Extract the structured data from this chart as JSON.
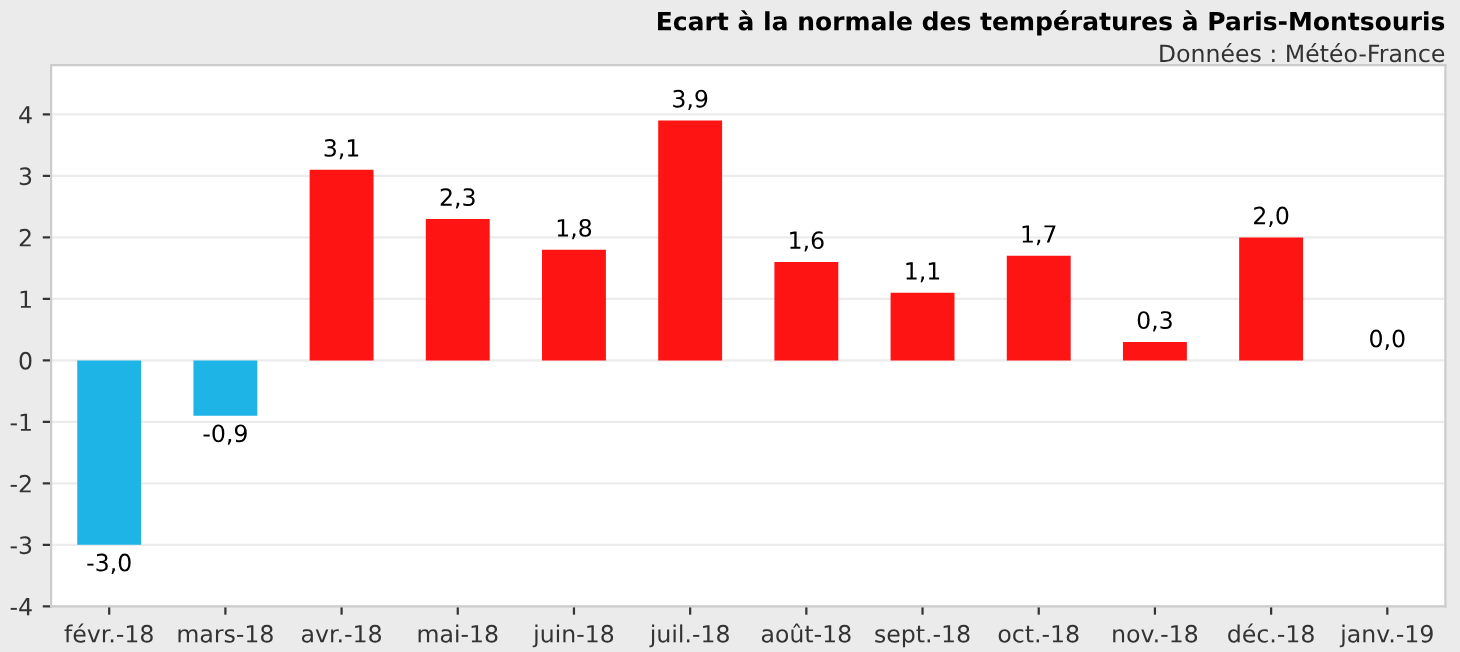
{
  "chart_data": {
    "type": "bar",
    "title": "Ecart à la normale des températures à Paris-Montsouris",
    "subtitle": "Données : Météo-France",
    "categories": [
      "févr.-18",
      "mars-18",
      "avr.-18",
      "mai-18",
      "juin-18",
      "juil.-18",
      "août-18",
      "sept.-18",
      "oct.-18",
      "nov.-18",
      "déc.-18",
      "janv.-19"
    ],
    "values": [
      -3.0,
      -0.9,
      3.1,
      2.3,
      1.8,
      3.9,
      1.6,
      1.1,
      1.7,
      0.3,
      2.0,
      0.0
    ],
    "colors": [
      "#1eb4e6",
      "#1eb4e6",
      "#ff1414",
      "#ff1414",
      "#ff1414",
      "#ff1414",
      "#ff1414",
      "#ff1414",
      "#ff1414",
      "#ff1414",
      "#ff1414",
      "#ff1414"
    ],
    "value_labels": [
      "-3,0",
      "-0,9",
      "3,1",
      "2,3",
      "1,8",
      "3,9",
      "1,6",
      "1,1",
      "1,7",
      "0,3",
      "2,0",
      "0,0"
    ],
    "ylim": [
      -4,
      4.8
    ],
    "yticks": [
      -4,
      -3,
      -2,
      -1,
      0,
      1,
      2,
      3,
      4
    ],
    "grid": "y",
    "legend": false
  }
}
